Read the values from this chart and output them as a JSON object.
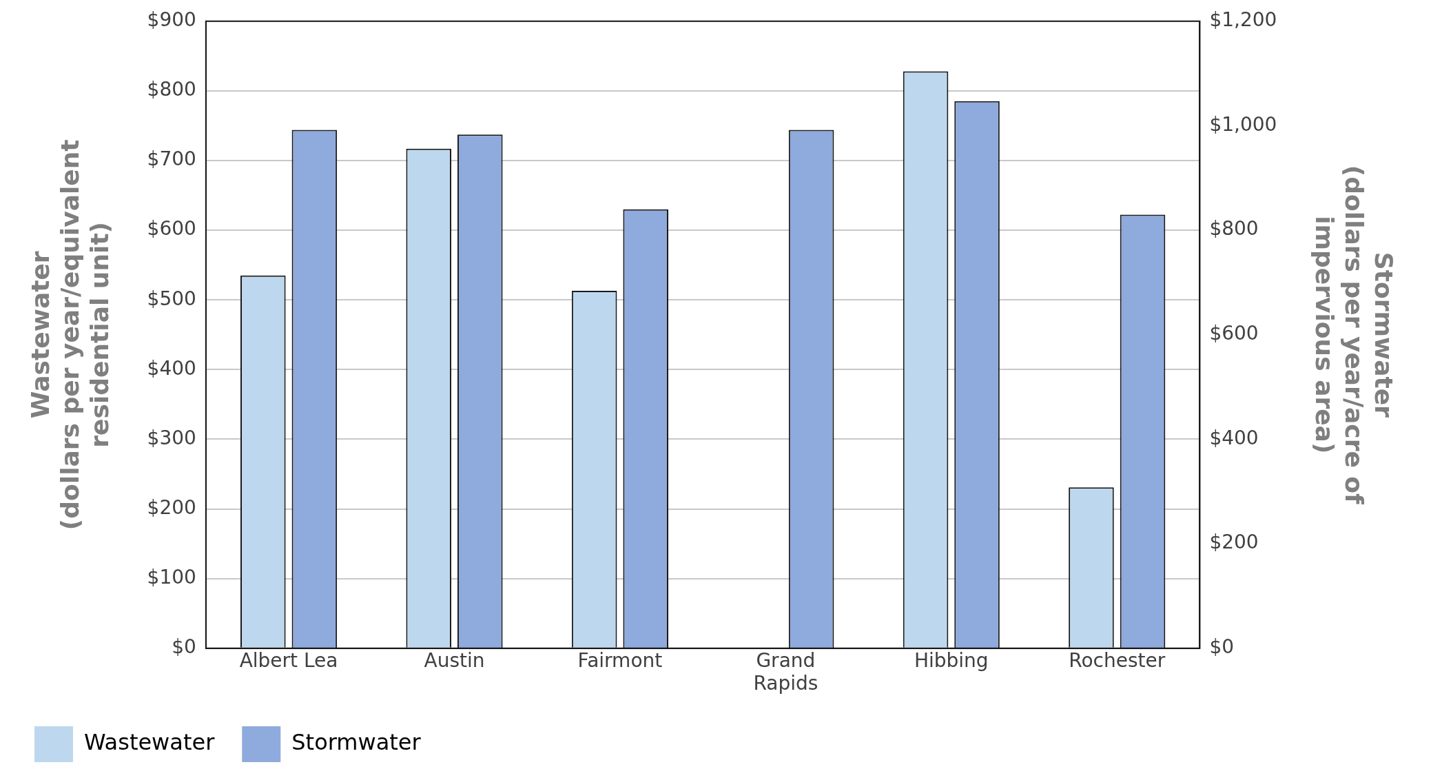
{
  "chart_data": {
    "type": "bar",
    "categories": [
      "Albert Lea",
      "Austin",
      "Fairmont",
      "Grand Rapids",
      "Hibbing",
      "Rochester"
    ],
    "series": [
      {
        "name": "Wastewater",
        "color": "#bdd7ee",
        "values": [
          535,
          717,
          513,
          null,
          828,
          231
        ]
      },
      {
        "name": "Stormwater",
        "color": "#8faadc",
        "axis": "y2",
        "values": [
          992,
          983,
          840,
          992,
          1047,
          830
        ]
      }
    ],
    "ylabel": "Wastewater\n(dollars per year/equivalent\nresidential unit)",
    "y2label": "Stormwater\n(dollars per year/acre of\nimpervious area)",
    "ylim": [
      0,
      900
    ],
    "yticks": [
      {
        "value": 0,
        "label": "$0"
      },
      {
        "value": 100,
        "label": "$100"
      },
      {
        "value": 200,
        "label": "$200"
      },
      {
        "value": 300,
        "label": "$300"
      },
      {
        "value": 400,
        "label": "$400"
      },
      {
        "value": 500,
        "label": "$500"
      },
      {
        "value": 600,
        "label": "$600"
      },
      {
        "value": 700,
        "label": "$700"
      },
      {
        "value": 800,
        "label": "$800"
      },
      {
        "value": 900,
        "label": "$900"
      }
    ],
    "y2lim": [
      0,
      1200
    ],
    "y2ticks": [
      {
        "value": 0,
        "label": "$0"
      },
      {
        "value": 200,
        "label": "$200"
      },
      {
        "value": 400,
        "label": "$400"
      },
      {
        "value": 600,
        "label": "$600"
      },
      {
        "value": 800,
        "label": "$800"
      },
      {
        "value": 1000,
        "label": "$1,000"
      },
      {
        "value": 1200,
        "label": "$1,200"
      }
    ],
    "grid": "y",
    "legend": "bottom left"
  }
}
